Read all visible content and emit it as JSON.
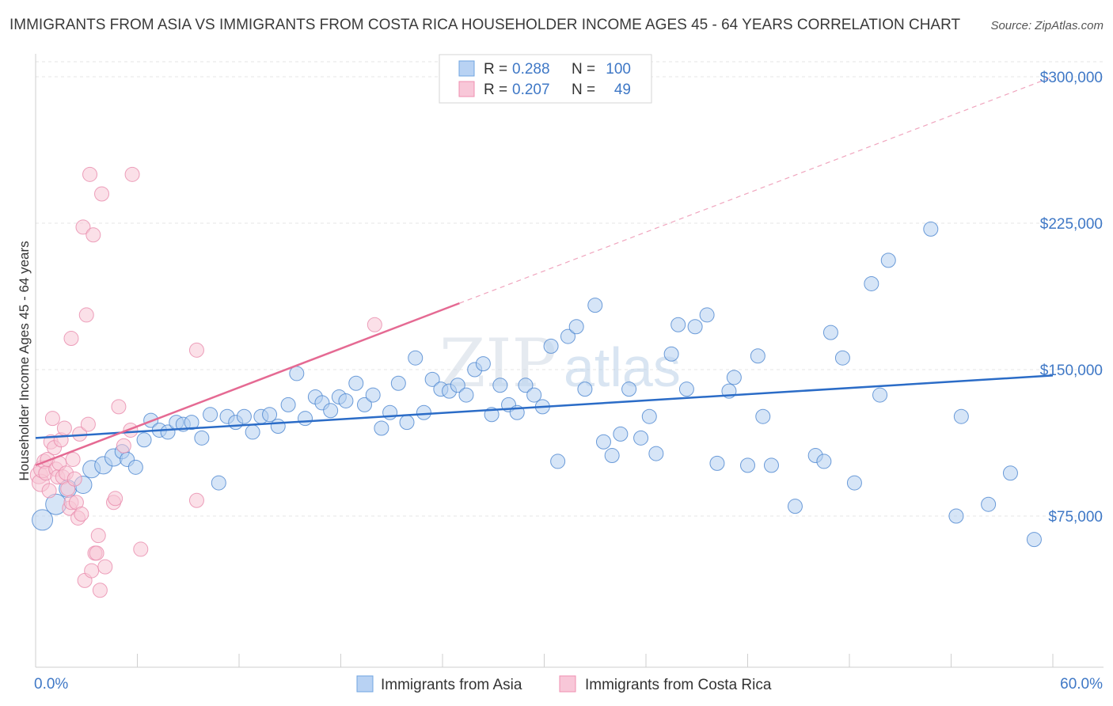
{
  "header": {
    "title": "IMMIGRANTS FROM ASIA VS IMMIGRANTS FROM COSTA RICA HOUSEHOLDER INCOME AGES 45 - 64 YEARS CORRELATION CHART",
    "source": "Source: ZipAtlas.com"
  },
  "watermark": {
    "zip": "ZIP",
    "atlas": "atlas"
  },
  "stats_box": {
    "rows": [
      {
        "r_label": "R =",
        "r_value": "0.288",
        "n_label": "N =",
        "n_value": "100",
        "color": "#6fa4e0",
        "fill": "#b8d2f3"
      },
      {
        "r_label": "R =",
        "r_value": "0.207",
        "n_label": "N =",
        "n_value": "49",
        "color": "#ef8fb0",
        "fill": "#f8c7d8"
      }
    ]
  },
  "chart_data": {
    "type": "scatter",
    "ylabel": "Householder Income Ages 45 - 64 years",
    "xlim": [
      0,
      60
    ],
    "ylim": [
      20000,
      320000
    ],
    "x_tick_labels": [
      "0.0%",
      "60.0%"
    ],
    "y_ticks": [
      75000,
      150000,
      225000,
      300000
    ],
    "y_tick_labels": [
      "$75,000",
      "$150,000",
      "$225,000",
      "$300,000"
    ],
    "grid": true,
    "legend_position": "bottom",
    "series": [
      {
        "name": "Immigrants from Asia",
        "color": "#4a85d0",
        "fill": "#b5cff1",
        "trend": {
          "x": [
            0,
            60
          ],
          "y": [
            115000,
            147000
          ],
          "color": "#2b6cc7"
        },
        "points": [
          [
            0.4,
            73000,
            3
          ],
          [
            1.2,
            81000,
            3
          ],
          [
            1.9,
            89000,
            2
          ],
          [
            2.8,
            91000,
            2
          ],
          [
            3.3,
            99000,
            2
          ],
          [
            4.0,
            101000,
            2
          ],
          [
            4.6,
            105000,
            2
          ],
          [
            5.1,
            108000,
            1
          ],
          [
            5.4,
            104000,
            1
          ],
          [
            5.9,
            100000,
            1
          ],
          [
            6.4,
            114000,
            1
          ],
          [
            6.8,
            124000,
            1
          ],
          [
            7.3,
            119000,
            1
          ],
          [
            7.8,
            118000,
            1
          ],
          [
            8.3,
            123000,
            1
          ],
          [
            8.7,
            122000,
            1
          ],
          [
            9.2,
            123000,
            1
          ],
          [
            9.8,
            115000,
            1
          ],
          [
            10.3,
            127000,
            1
          ],
          [
            10.8,
            92000,
            1
          ],
          [
            11.3,
            126000,
            1
          ],
          [
            11.8,
            123000,
            1
          ],
          [
            12.3,
            126000,
            1
          ],
          [
            12.8,
            118000,
            1
          ],
          [
            13.3,
            126000,
            1
          ],
          [
            13.8,
            127000,
            1
          ],
          [
            14.3,
            121000,
            1
          ],
          [
            14.9,
            132000,
            1
          ],
          [
            15.4,
            148000,
            1
          ],
          [
            15.9,
            125000,
            1
          ],
          [
            16.5,
            136000,
            1
          ],
          [
            16.9,
            133000,
            1
          ],
          [
            17.4,
            129000,
            1
          ],
          [
            17.9,
            136000,
            1
          ],
          [
            18.3,
            134000,
            1
          ],
          [
            18.9,
            143000,
            1
          ],
          [
            19.4,
            132000,
            1
          ],
          [
            19.9,
            137000,
            1
          ],
          [
            20.4,
            120000,
            1
          ],
          [
            20.9,
            128000,
            1
          ],
          [
            21.4,
            143000,
            1
          ],
          [
            21.9,
            123000,
            1
          ],
          [
            22.4,
            156000,
            1
          ],
          [
            22.9,
            128000,
            1
          ],
          [
            23.4,
            145000,
            1
          ],
          [
            23.9,
            140000,
            1
          ],
          [
            24.4,
            139000,
            1
          ],
          [
            24.9,
            142000,
            1
          ],
          [
            25.4,
            137000,
            1
          ],
          [
            25.9,
            150000,
            1
          ],
          [
            26.4,
            153000,
            1
          ],
          [
            26.9,
            127000,
            1
          ],
          [
            27.4,
            142000,
            1
          ],
          [
            27.9,
            132000,
            1
          ],
          [
            28.4,
            128000,
            1
          ],
          [
            28.9,
            142000,
            1
          ],
          [
            29.4,
            137000,
            1
          ],
          [
            29.9,
            131000,
            1
          ],
          [
            30.4,
            162000,
            1
          ],
          [
            30.8,
            103000,
            1
          ],
          [
            31.4,
            167000,
            1
          ],
          [
            31.9,
            172000,
            1
          ],
          [
            32.4,
            140000,
            1
          ],
          [
            33.0,
            183000,
            1
          ],
          [
            33.5,
            113000,
            1
          ],
          [
            34.0,
            106000,
            1
          ],
          [
            34.5,
            117000,
            1
          ],
          [
            35.0,
            140000,
            1
          ],
          [
            35.7,
            115000,
            1
          ],
          [
            36.2,
            126000,
            1
          ],
          [
            36.6,
            107000,
            1
          ],
          [
            37.5,
            158000,
            1
          ],
          [
            37.9,
            173000,
            1
          ],
          [
            38.4,
            140000,
            1
          ],
          [
            38.9,
            172000,
            1
          ],
          [
            39.6,
            178000,
            1
          ],
          [
            40.2,
            102000,
            1
          ],
          [
            40.9,
            139000,
            1
          ],
          [
            41.2,
            146000,
            1
          ],
          [
            42.0,
            101000,
            1
          ],
          [
            42.6,
            157000,
            1
          ],
          [
            42.9,
            126000,
            1
          ],
          [
            43.4,
            101000,
            1
          ],
          [
            44.8,
            80000,
            1
          ],
          [
            46.0,
            106000,
            1
          ],
          [
            46.5,
            103000,
            1
          ],
          [
            46.9,
            169000,
            1
          ],
          [
            47.6,
            156000,
            1
          ],
          [
            48.3,
            92000,
            1
          ],
          [
            49.3,
            194000,
            1
          ],
          [
            49.8,
            137000,
            1
          ],
          [
            50.3,
            206000,
            1
          ],
          [
            52.8,
            222000,
            1
          ],
          [
            54.3,
            75000,
            1
          ],
          [
            54.6,
            126000,
            1
          ],
          [
            56.2,
            81000,
            1
          ],
          [
            57.5,
            97000,
            1
          ],
          [
            58.9,
            63000,
            1
          ]
        ]
      },
      {
        "name": "Immigrants from Costa Rica",
        "color": "#e98aab",
        "fill": "#f8c6d6",
        "trend": {
          "x": [
            0,
            25
          ],
          "y": [
            101000,
            184000
          ],
          "color": "#e56a93"
        },
        "trend_extension": {
          "x": [
            25,
            60
          ],
          "y": [
            184000,
            300000
          ]
        },
        "points": [
          [
            0.2,
            96000,
            2
          ],
          [
            0.3,
            92000,
            2
          ],
          [
            0.4,
            99000,
            2
          ],
          [
            0.5,
            103000,
            1
          ],
          [
            0.6,
            97000,
            1
          ],
          [
            0.7,
            104000,
            1
          ],
          [
            0.8,
            88000,
            1
          ],
          [
            0.9,
            113000,
            1
          ],
          [
            1.0,
            125000,
            1
          ],
          [
            1.1,
            110000,
            1
          ],
          [
            1.2,
            99000,
            1
          ],
          [
            1.3,
            95000,
            1
          ],
          [
            1.4,
            102000,
            1
          ],
          [
            1.5,
            114000,
            1
          ],
          [
            1.6,
            95000,
            1
          ],
          [
            1.7,
            120000,
            1
          ],
          [
            1.8,
            97000,
            1
          ],
          [
            1.9,
            89000,
            1
          ],
          [
            2.0,
            79000,
            1
          ],
          [
            2.1,
            82000,
            1
          ],
          [
            2.2,
            104000,
            1
          ],
          [
            2.3,
            94000,
            1
          ],
          [
            2.1,
            166000,
            1
          ],
          [
            2.4,
            82000,
            1
          ],
          [
            2.5,
            74000,
            1
          ],
          [
            2.6,
            117000,
            1
          ],
          [
            2.7,
            76000,
            1
          ],
          [
            2.8,
            223000,
            1
          ],
          [
            2.9,
            42000,
            1
          ],
          [
            3.0,
            178000,
            1
          ],
          [
            3.1,
            122000,
            1
          ],
          [
            3.2,
            250000,
            1
          ],
          [
            3.3,
            47000,
            1
          ],
          [
            3.4,
            219000,
            1
          ],
          [
            3.5,
            56000,
            1
          ],
          [
            3.6,
            56000,
            1
          ],
          [
            3.7,
            65000,
            1
          ],
          [
            3.8,
            37000,
            1
          ],
          [
            3.9,
            240000,
            1
          ],
          [
            4.1,
            49000,
            1
          ],
          [
            4.6,
            82000,
            1
          ],
          [
            4.7,
            84000,
            1
          ],
          [
            4.9,
            131000,
            1
          ],
          [
            5.2,
            111000,
            1
          ],
          [
            5.6,
            119000,
            1
          ],
          [
            5.7,
            250000,
            1
          ],
          [
            6.2,
            58000,
            1
          ],
          [
            9.5,
            160000,
            1
          ],
          [
            9.5,
            83000,
            1
          ],
          [
            20.0,
            173000,
            1
          ]
        ]
      }
    ]
  }
}
